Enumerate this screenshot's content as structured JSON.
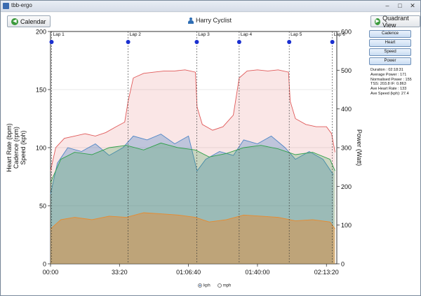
{
  "window": {
    "title": "tbb-ergo"
  },
  "toolbar": {
    "calendar_label": "Calendar",
    "quadrant_label": "Quadrant View",
    "athlete": "Harry Cyclist"
  },
  "side_buttons": [
    "Cadence",
    "Heart",
    "Speed",
    "Power"
  ],
  "summary": [
    "Duration : 02:18:31",
    "Average Power : 171",
    "Normalised Power : 155",
    "TSS: 203.8 IF: 0.863",
    "Ave Heart Rate : 133",
    "Ave Speed (kph): 27.4"
  ],
  "units": {
    "kph": "kph",
    "mph": "mph",
    "selected": "kph"
  },
  "colors": {
    "heart": "#e05a5a",
    "power": "#4f86c6",
    "cadence": "#2fa04a",
    "speed": "#e88a2e",
    "lap_marker": "#1a2fd0"
  },
  "chart_data": {
    "type": "area",
    "x_ticks": [
      "00:00",
      "33:20",
      "01:06:40",
      "01:40:00",
      "02:13:20"
    ],
    "x_tick_seconds": [
      0,
      2000,
      4000,
      6000,
      8000
    ],
    "xlim": [
      0,
      8300
    ],
    "left_axis_label": "Heart Rate (bpm)\nCadence (rpm)\nSpeed (kph)",
    "left_axis_lines": [
      "Heart Rate (bpm)",
      "Cadence (rpm)",
      "Speed (kph)"
    ],
    "right_axis_label": "Power (Watt)",
    "left_ticks": [
      0,
      50,
      100,
      150,
      200
    ],
    "left_ylim": [
      0,
      200
    ],
    "right_ticks": [
      0,
      100,
      200,
      300,
      400,
      500,
      600
    ],
    "right_ylim": [
      0,
      600
    ],
    "laps": [
      {
        "name": "Lap 1",
        "t": 30
      },
      {
        "name": "Lap 2",
        "t": 2250
      },
      {
        "name": "Lap 3",
        "t": 4240
      },
      {
        "name": "Lap 4",
        "t": 5470
      },
      {
        "name": "Lap 5",
        "t": 6920
      },
      {
        "name": "Lap 6",
        "t": 8170
      }
    ],
    "series": [
      {
        "name": "Heart",
        "axis": "left",
        "points": [
          [
            0,
            80
          ],
          [
            150,
            100
          ],
          [
            400,
            108
          ],
          [
            700,
            110
          ],
          [
            1000,
            112
          ],
          [
            1300,
            110
          ],
          [
            1600,
            113
          ],
          [
            1900,
            118
          ],
          [
            2150,
            122
          ],
          [
            2250,
            140
          ],
          [
            2400,
            160
          ],
          [
            2700,
            164
          ],
          [
            3000,
            165
          ],
          [
            3300,
            166
          ],
          [
            3600,
            166
          ],
          [
            3900,
            167
          ],
          [
            4200,
            165
          ],
          [
            4250,
            135
          ],
          [
            4400,
            120
          ],
          [
            4700,
            115
          ],
          [
            5000,
            118
          ],
          [
            5300,
            128
          ],
          [
            5470,
            160
          ],
          [
            5700,
            166
          ],
          [
            6000,
            167
          ],
          [
            6300,
            166
          ],
          [
            6600,
            167
          ],
          [
            6900,
            165
          ],
          [
            6950,
            140
          ],
          [
            7100,
            125
          ],
          [
            7400,
            120
          ],
          [
            7700,
            118
          ],
          [
            8000,
            118
          ],
          [
            8150,
            112
          ],
          [
            8250,
            96
          ]
        ]
      },
      {
        "name": "Power",
        "axis": "right",
        "points": [
          [
            0,
            180
          ],
          [
            200,
            260
          ],
          [
            500,
            300
          ],
          [
            900,
            290
          ],
          [
            1300,
            310
          ],
          [
            1700,
            280
          ],
          [
            2100,
            300
          ],
          [
            2400,
            330
          ],
          [
            2800,
            320
          ],
          [
            3200,
            335
          ],
          [
            3600,
            310
          ],
          [
            4000,
            330
          ],
          [
            4250,
            240
          ],
          [
            4500,
            270
          ],
          [
            4900,
            290
          ],
          [
            5300,
            280
          ],
          [
            5600,
            320
          ],
          [
            6000,
            310
          ],
          [
            6400,
            330
          ],
          [
            6800,
            300
          ],
          [
            7100,
            270
          ],
          [
            7500,
            290
          ],
          [
            7900,
            270
          ],
          [
            8200,
            230
          ]
        ]
      },
      {
        "name": "Cadence",
        "axis": "left",
        "points": [
          [
            0,
            70
          ],
          [
            300,
            90
          ],
          [
            700,
            96
          ],
          [
            1200,
            94
          ],
          [
            1700,
            100
          ],
          [
            2200,
            102
          ],
          [
            2700,
            98
          ],
          [
            3200,
            104
          ],
          [
            3700,
            100
          ],
          [
            4200,
            98
          ],
          [
            4600,
            92
          ],
          [
            5100,
            95
          ],
          [
            5600,
            100
          ],
          [
            6100,
            102
          ],
          [
            6600,
            99
          ],
          [
            7100,
            94
          ],
          [
            7600,
            96
          ],
          [
            8100,
            90
          ],
          [
            8250,
            80
          ]
        ]
      },
      {
        "name": "Speed",
        "axis": "left",
        "points": [
          [
            0,
            30
          ],
          [
            300,
            38
          ],
          [
            700,
            40
          ],
          [
            1200,
            38
          ],
          [
            1700,
            41
          ],
          [
            2200,
            40
          ],
          [
            2700,
            44
          ],
          [
            3200,
            43
          ],
          [
            3700,
            42
          ],
          [
            4200,
            40
          ],
          [
            4600,
            36
          ],
          [
            5100,
            38
          ],
          [
            5600,
            42
          ],
          [
            6100,
            41
          ],
          [
            6600,
            40
          ],
          [
            7100,
            37
          ],
          [
            7600,
            38
          ],
          [
            8100,
            36
          ],
          [
            8250,
            30
          ]
        ]
      }
    ]
  }
}
